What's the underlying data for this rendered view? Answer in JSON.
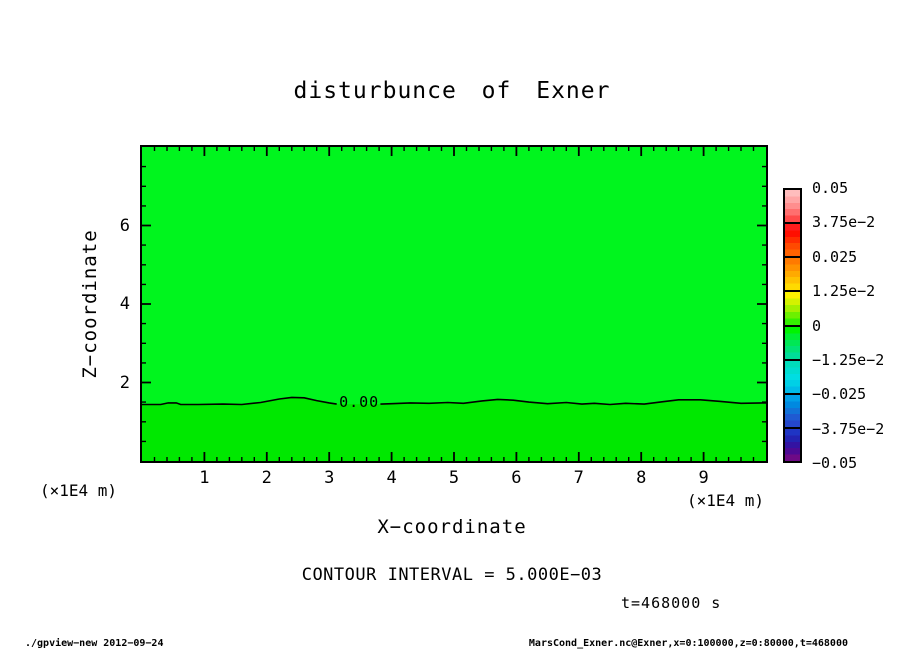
{
  "window": {
    "background": "#ffffff"
  },
  "title": "disturbunce of Exner",
  "footer": {
    "left": "./gpview−new  2012−09−24",
    "right": "MarsCond_Exner.nc@Exner,x=0:100000,z=0:80000,t=468000"
  },
  "chart_data": {
    "type": "heatmap",
    "title": "disturbunce of Exner",
    "xlabel": "X−coordinate",
    "ylabel": "Z−coordinate",
    "x_units": "(×1E4 m)",
    "y_units": "(×1E4 m)",
    "xlim": [
      0,
      10
    ],
    "ylim": [
      0,
      8
    ],
    "x_major_ticks": [
      1,
      2,
      3,
      4,
      5,
      6,
      7,
      8,
      9
    ],
    "x_minor_step": 0.2,
    "y_major_ticks": [
      2,
      4,
      6
    ],
    "y_minor_step": 0.5,
    "grid": false,
    "contour_interval": 0.005,
    "contour_interval_text": "CONTOUR INTERVAL = 5.000E−03",
    "time_annotation": "t=468000 s",
    "field_summary": "Exner disturbance nearly 0 everywhere: slightly positive above wavy zero contour at z≈1.5e4 m, slightly negative below it",
    "region_colors": {
      "above_zero": "#00f51e",
      "below_zero": "#00e800"
    },
    "zero_contour": {
      "label": "0.00",
      "label_x": 3.48,
      "label_z": 1.5,
      "line_color": "#000000",
      "segments": [
        [
          [
            0,
            1.44
          ],
          [
            0.3,
            1.44
          ],
          [
            0.42,
            1.48
          ],
          [
            0.55,
            1.48
          ],
          [
            0.62,
            1.44
          ],
          [
            0.9,
            1.44
          ],
          [
            1.3,
            1.45
          ],
          [
            1.6,
            1.44
          ],
          [
            1.9,
            1.49
          ],
          [
            2.2,
            1.58
          ],
          [
            2.4,
            1.62
          ],
          [
            2.6,
            1.61
          ],
          [
            2.8,
            1.54
          ],
          [
            3.0,
            1.48
          ],
          [
            3.12,
            1.45
          ]
        ],
        [
          [
            3.82,
            1.45
          ],
          [
            4.0,
            1.46
          ],
          [
            4.3,
            1.48
          ],
          [
            4.6,
            1.47
          ],
          [
            4.9,
            1.49
          ],
          [
            5.15,
            1.47
          ],
          [
            5.45,
            1.53
          ],
          [
            5.7,
            1.57
          ],
          [
            5.95,
            1.55
          ],
          [
            6.2,
            1.5
          ],
          [
            6.5,
            1.46
          ],
          [
            6.8,
            1.49
          ],
          [
            7.05,
            1.45
          ],
          [
            7.25,
            1.47
          ],
          [
            7.5,
            1.44
          ],
          [
            7.75,
            1.47
          ],
          [
            8.05,
            1.45
          ],
          [
            8.35,
            1.51
          ],
          [
            8.6,
            1.56
          ],
          [
            8.95,
            1.56
          ],
          [
            9.25,
            1.52
          ],
          [
            9.6,
            1.47
          ],
          [
            10,
            1.48
          ]
        ]
      ]
    },
    "colorbar": {
      "levels_top_to_bottom": [
        0.05,
        0.0375,
        0.025,
        0.0125,
        0,
        -0.0125,
        -0.025,
        -0.0375,
        -0.05
      ],
      "labels": [
        "0.05",
        "3.75e−2",
        "0.025",
        "1.25e−2",
        "0",
        "−1.25e−2",
        "−0.025",
        "−3.75e−2",
        "−0.05"
      ],
      "border_color": "#000000",
      "cells_top_to_bottom": [
        [
          "#ffbdbd",
          "#ffa6a6",
          "#ff8e8e",
          "#ff6f6f",
          "#ff4a4a"
        ],
        [
          "#ff1c1c",
          "#ff0f00",
          "#ff2d00",
          "#ff4a00",
          "#ff6200"
        ],
        [
          "#ff7a00",
          "#ff9200",
          "#ffaa00",
          "#ffc200",
          "#ffda00"
        ],
        [
          "#fcf200",
          "#d4f200",
          "#a4f000",
          "#6cf000",
          "#34f000"
        ],
        [
          "#00f400",
          "#00ee33",
          "#00e755",
          "#00e277",
          "#00dd99"
        ],
        [
          "#00ddbb",
          "#00ddd0",
          "#00dde2",
          "#00d0e6",
          "#00bbe8"
        ],
        [
          "#00a0e8",
          "#0089e0",
          "#1272d8",
          "#1f5ad2",
          "#2547cb"
        ],
        [
          "#1f35c4",
          "#2323b2",
          "#3313a2",
          "#4d0a94",
          "#6e0a86"
        ]
      ]
    }
  }
}
